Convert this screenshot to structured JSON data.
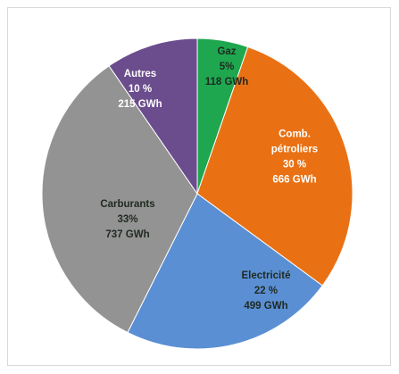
{
  "chart_data": {
    "type": "pie",
    "title": "",
    "slices": [
      {
        "name": "Gaz",
        "percent_label": "5%",
        "value_label": "118 GWh",
        "value": 118,
        "color": "#1fa750",
        "label_color": "#1f2a20"
      },
      {
        "name": "Comb.\npétroliers",
        "percent_label": "30 %",
        "value_label": "666 GWh",
        "value": 666,
        "color": "#e97114",
        "label_color": "#ffffff"
      },
      {
        "name": "Electricité",
        "percent_label": "22 %",
        "value_label": "499 GWh",
        "value": 499,
        "color": "#5b8fd4",
        "label_color": "#1f2a20"
      },
      {
        "name": "Carburants",
        "percent_label": "33%",
        "value_label": "737 GWh",
        "value": 737,
        "color": "#939393",
        "label_color": "#1f2a20"
      },
      {
        "name": "Autres",
        "percent_label": "10 %",
        "value_label": "215 GWh",
        "value": 215,
        "color": "#6b4c8c",
        "label_color": "#ffffff"
      }
    ],
    "legend": "none"
  }
}
